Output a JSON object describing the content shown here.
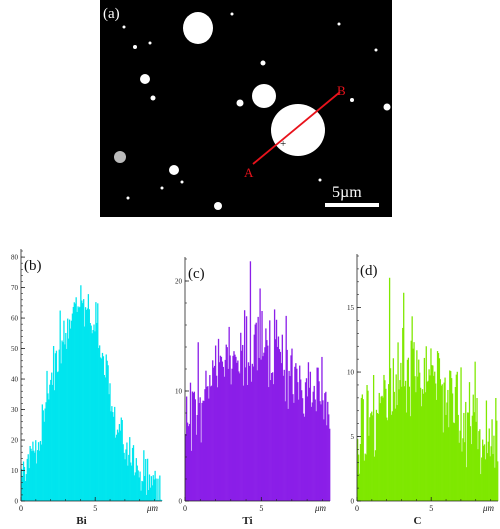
{
  "sem_panel": {
    "label": "(a)",
    "point_a": "A",
    "point_b": "B",
    "scale_bar_label": "5µm",
    "background_color": "#000000",
    "particle_color": "#ffffff",
    "line_color": "#e8121b"
  },
  "chart_data": [
    {
      "type": "bar",
      "panel_label": "(b)",
      "element_label": "Bi",
      "x_unit_label": "μm",
      "xlim": [
        0,
        9.5
      ],
      "ylim": [
        0,
        82
      ],
      "x_ticks": [
        0,
        5
      ],
      "y_ticks": [
        0,
        10,
        20,
        30,
        40,
        50,
        60,
        70,
        80
      ],
      "color": "#00e5ee",
      "profile_shape": {
        "peak_x": 4.0,
        "peak_y": 64,
        "spread": 1.8,
        "background": 3,
        "noise": 9
      }
    },
    {
      "type": "bar",
      "panel_label": "(c)",
      "element_label": "Ti",
      "x_unit_label": "μm",
      "xlim": [
        0,
        9.5
      ],
      "ylim": [
        0,
        22
      ],
      "x_ticks": [
        0,
        5
      ],
      "y_ticks": [
        0,
        10,
        20
      ],
      "color": "#8b1fe8",
      "profile_shape": {
        "peak_x": 4.8,
        "peak_y": 14,
        "spread": 3.2,
        "background": 5,
        "noise": 4.5
      }
    },
    {
      "type": "bar",
      "panel_label": "(d)",
      "element_label": "C",
      "x_unit_label": "μm",
      "xlim": [
        0,
        9.5
      ],
      "ylim": [
        0,
        19
      ],
      "x_ticks": [
        0,
        5
      ],
      "y_ticks": [
        0,
        5,
        10,
        15
      ],
      "color": "#7fe800",
      "profile_shape": {
        "peak_x": 4.2,
        "peak_y": 10,
        "spread": 2.7,
        "background": 3,
        "noise": 4
      }
    }
  ]
}
